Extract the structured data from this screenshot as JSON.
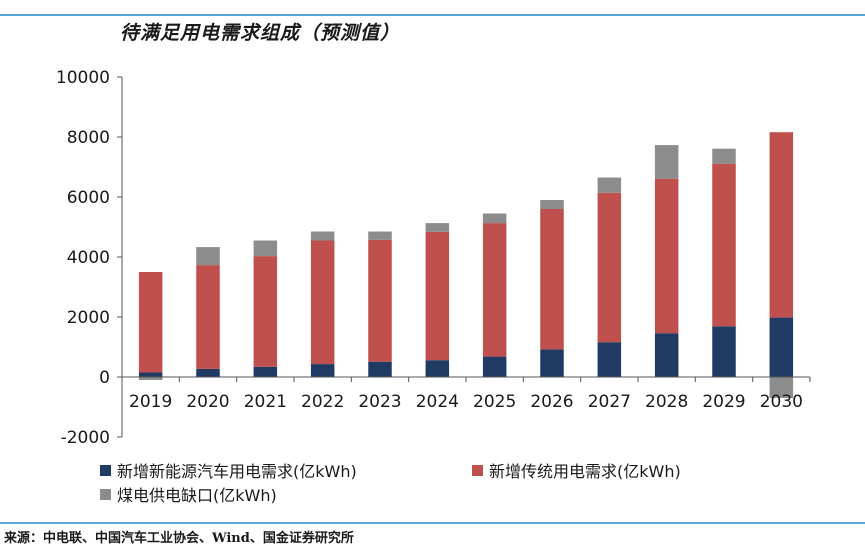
{
  "title": "待满足用电需求组成（预测值）",
  "source": "来源：中电联、中国汽车工业协会、Wind、国金证券研究所",
  "chart_data": {
    "type": "bar",
    "stacked": true,
    "categories": [
      "2019",
      "2020",
      "2021",
      "2022",
      "2023",
      "2024",
      "2025",
      "2026",
      "2027",
      "2028",
      "2029",
      "2030"
    ],
    "series": [
      {
        "name": "新增新能源汽车用电需求(亿kWh)",
        "color": "#1f3b63",
        "values": [
          150,
          270,
          340,
          430,
          510,
          560,
          680,
          920,
          1160,
          1460,
          1690,
          1980
        ]
      },
      {
        "name": "新增传统用电需求(亿kWh)",
        "color": "#c0504d",
        "values": [
          3350,
          3460,
          3690,
          4120,
          4060,
          4280,
          4450,
          4680,
          4980,
          5150,
          5420,
          6180
        ]
      },
      {
        "name": "煤电供电缺口(亿kWh)",
        "color": "#8c8c8c",
        "values": [
          -100,
          600,
          520,
          300,
          280,
          290,
          320,
          300,
          510,
          1120,
          500,
          -700
        ]
      }
    ],
    "ylim": [
      -2000,
      10000
    ],
    "yticks": [
      -2000,
      0,
      2000,
      4000,
      6000,
      8000,
      10000
    ],
    "legend_position": "bottom",
    "grid": false
  }
}
